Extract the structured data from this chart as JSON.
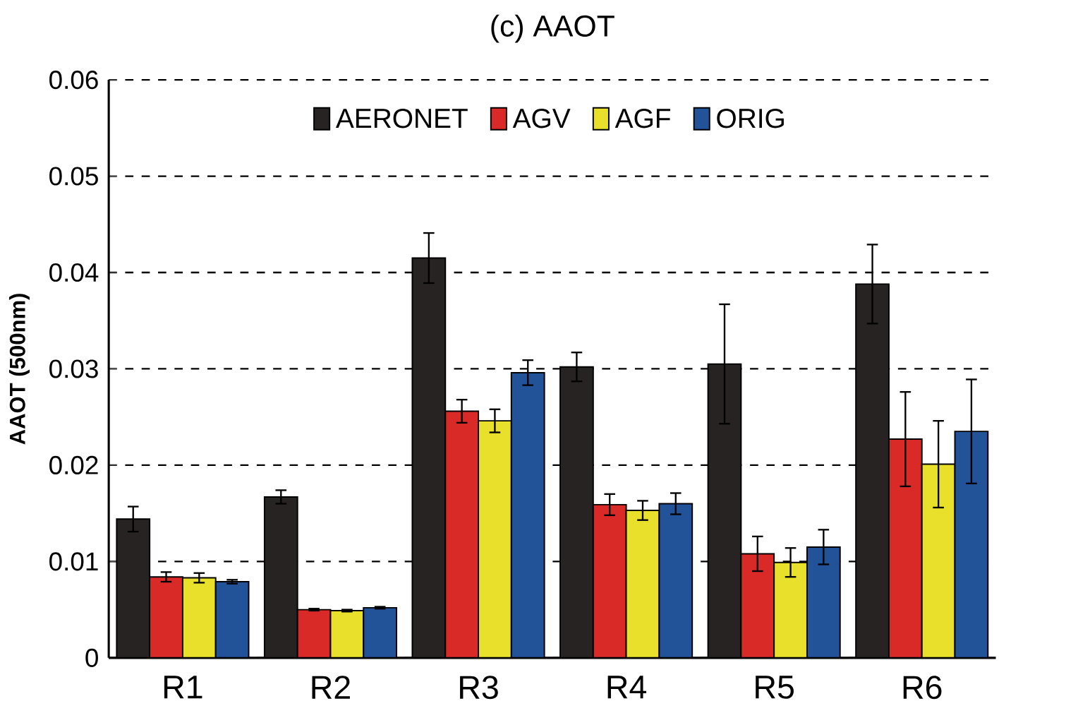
{
  "chart_data": {
    "type": "bar",
    "title": "(c) AAOT",
    "ylabel": "AAOT (500nm)",
    "categories": [
      "R1",
      "R2",
      "R3",
      "R4",
      "R5",
      "R6"
    ],
    "series": [
      {
        "name": "AERONET",
        "color": "#272322",
        "values": [
          0.0144,
          0.0167,
          0.0415,
          0.0302,
          0.0305,
          0.0388
        ],
        "errors": [
          0.0013,
          0.0007,
          0.0026,
          0.0015,
          0.0062,
          0.0041
        ]
      },
      {
        "name": "AGV",
        "color": "#d92a27",
        "values": [
          0.0084,
          0.005,
          0.0256,
          0.0159,
          0.0108,
          0.0227
        ],
        "errors": [
          0.0005,
          0.0001,
          0.0012,
          0.0011,
          0.0018,
          0.0049
        ]
      },
      {
        "name": "AGF",
        "color": "#e8e02a",
        "values": [
          0.0083,
          0.0049,
          0.0246,
          0.0153,
          0.0099,
          0.0201
        ],
        "errors": [
          0.0005,
          0.0001,
          0.0012,
          0.001,
          0.0015,
          0.0045
        ]
      },
      {
        "name": "ORIG",
        "color": "#225298",
        "values": [
          0.0079,
          0.0052,
          0.0296,
          0.016,
          0.0115,
          0.0235
        ],
        "errors": [
          0.0002,
          0.0001,
          0.0013,
          0.0011,
          0.0018,
          0.0054
        ]
      }
    ],
    "ylim": [
      0,
      0.06
    ],
    "yticks": [
      0,
      0.01,
      0.02,
      0.03,
      0.04,
      0.05,
      0.06
    ],
    "grid": "y",
    "legend": "top"
  }
}
